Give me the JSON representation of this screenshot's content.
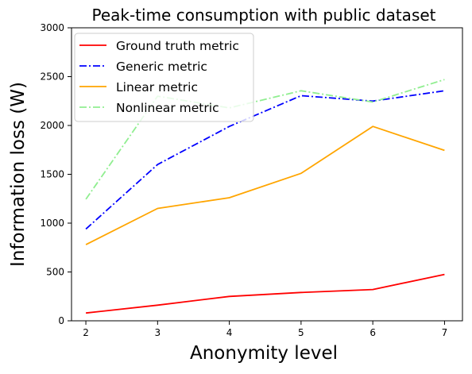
{
  "chart_data": {
    "type": "line",
    "title": "Peak-time consumption with public dataset",
    "xlabel": "Anonymity level",
    "ylabel": "Information loss (W)",
    "x": [
      2,
      3,
      4,
      5,
      6,
      7
    ],
    "xlim": [
      1.8,
      7.25
    ],
    "ylim": [
      0,
      3000
    ],
    "xticks": [
      "2",
      "3",
      "4",
      "5",
      "6",
      "7"
    ],
    "yticks": [
      "0",
      "500",
      "1000",
      "1500",
      "2000",
      "2500",
      "3000"
    ],
    "grid": false,
    "legend_position": "top-left",
    "series": [
      {
        "name": "Ground truth metric",
        "values": [
          80,
          160,
          250,
          290,
          320,
          475
        ],
        "color": "#ff0000",
        "line_style": "solid"
      },
      {
        "name": "Generic metric",
        "values": [
          940,
          1600,
          1990,
          2305,
          2250,
          2355
        ],
        "color": "#0000ff",
        "line_style": "dashdot"
      },
      {
        "name": "Linear metric",
        "values": [
          780,
          1150,
          1260,
          1510,
          1990,
          1745
        ],
        "color": "#ffa500",
        "line_style": "solid"
      },
      {
        "name": "Nonlinear metric",
        "values": [
          1245,
          2300,
          2180,
          2355,
          2240,
          2470
        ],
        "color": "#90ee90",
        "line_style": "dashdot"
      }
    ]
  }
}
